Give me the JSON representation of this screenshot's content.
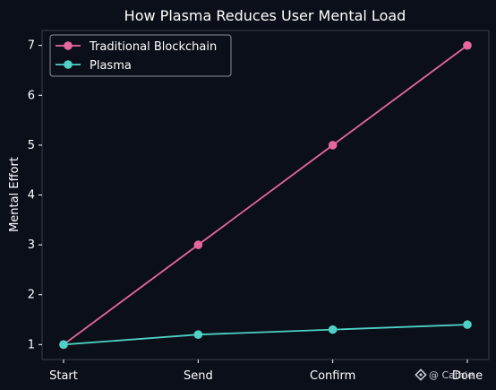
{
  "chart_data": {
    "type": "line",
    "title": "How Plasma Reduces User Mental Load",
    "xlabel": "",
    "ylabel": "Mental Effort",
    "categories": [
      "Start",
      "Send",
      "Confirm",
      "Done"
    ],
    "ylim": [
      0.7,
      7.3
    ],
    "yticks": [
      1,
      2,
      3,
      4,
      5,
      6,
      7
    ],
    "grid": false,
    "legend_position": "top-left",
    "series": [
      {
        "name": "Traditional Blockchain",
        "values": [
          1,
          3,
          5,
          7
        ],
        "color": "#e6679f"
      },
      {
        "name": "Plasma",
        "values": [
          1,
          1.2,
          1.3,
          1.4
        ],
        "color": "#4fd1c5"
      }
    ]
  },
  "watermark": {
    "text": "@ Cathie",
    "icon": "binance-diamond-icon"
  },
  "colors": {
    "background": "#0b0f19",
    "axes": "#3a3f4a",
    "text": "#ffffff"
  }
}
